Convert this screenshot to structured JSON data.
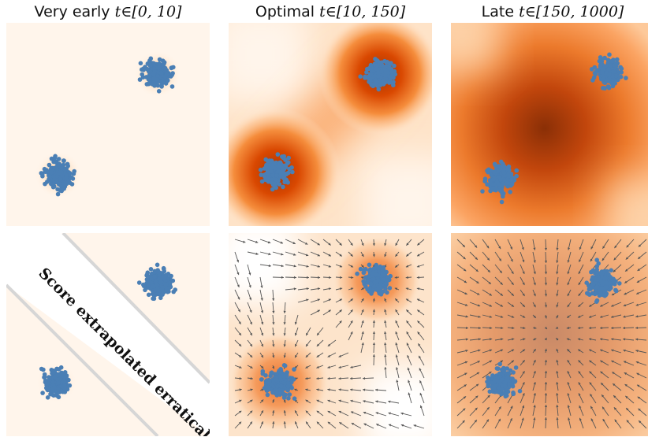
{
  "columns": [
    {
      "name": "very-early",
      "label": "Very early",
      "math": "t∈[0, 10]"
    },
    {
      "name": "optimal",
      "label": "Optimal",
      "math": "t∈[10, 150]"
    },
    {
      "name": "late",
      "label": "Late",
      "math": "t∈[150, 1000]"
    }
  ],
  "annotation": "Score extrapolated erratically",
  "colors": {
    "points": "#4a7fb5",
    "heat_low": "#fff5eb",
    "heat_mid": "#f07b2a",
    "heat_high": "#7f2704",
    "arrows": "#555555",
    "band_lines": "#d6d6d6"
  }
}
